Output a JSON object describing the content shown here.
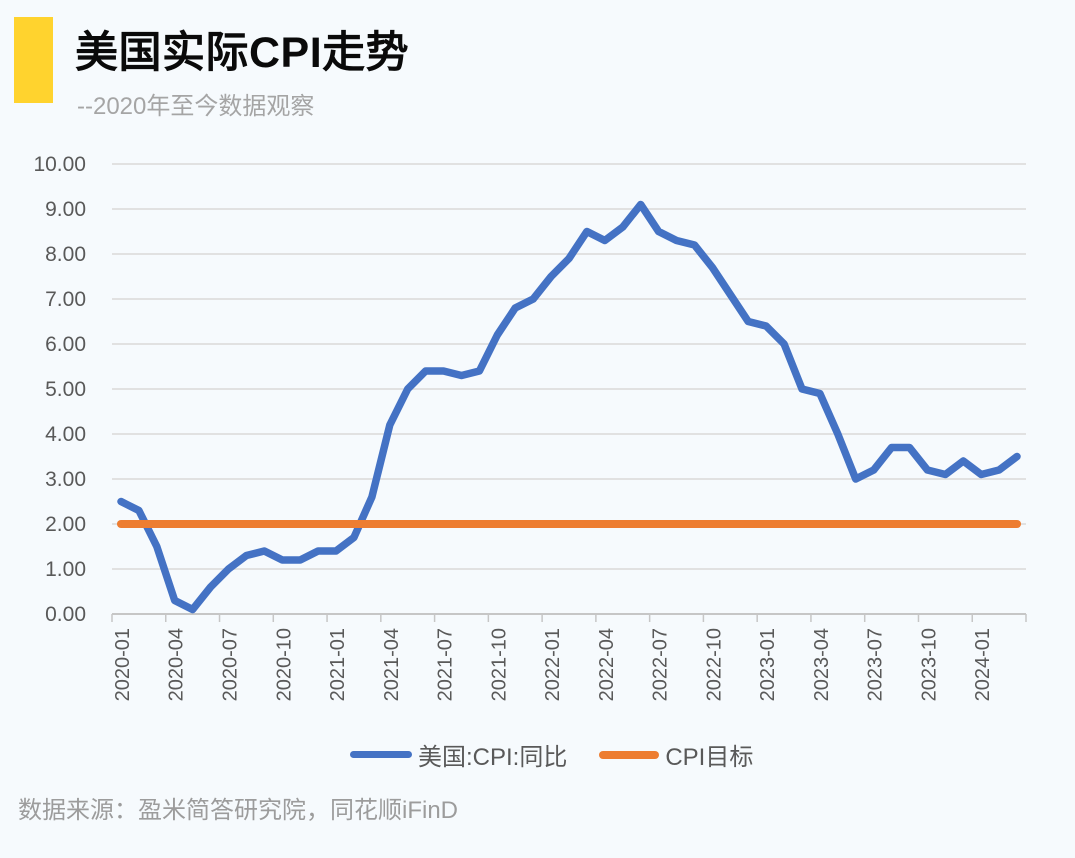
{
  "page": {
    "background": "#F6FAFD"
  },
  "header": {
    "accent_color": "#FFD32E",
    "title": "美国实际CPI走势",
    "subtitle": "--2020年至今数据观察"
  },
  "chart_data": {
    "type": "line",
    "title": "美国实际CPI走势",
    "x": [
      "2020-01",
      "2020-02",
      "2020-03",
      "2020-04",
      "2020-05",
      "2020-06",
      "2020-07",
      "2020-08",
      "2020-09",
      "2020-10",
      "2020-11",
      "2020-12",
      "2021-01",
      "2021-02",
      "2021-03",
      "2021-04",
      "2021-05",
      "2021-06",
      "2021-07",
      "2021-08",
      "2021-09",
      "2021-10",
      "2021-11",
      "2021-12",
      "2022-01",
      "2022-02",
      "2022-03",
      "2022-04",
      "2022-05",
      "2022-06",
      "2022-07",
      "2022-08",
      "2022-09",
      "2022-10",
      "2022-11",
      "2022-12",
      "2023-01",
      "2023-02",
      "2023-03",
      "2023-04",
      "2023-05",
      "2023-06",
      "2023-07",
      "2023-08",
      "2023-09",
      "2023-10",
      "2023-11",
      "2023-12",
      "2024-01",
      "2024-02",
      "2024-03"
    ],
    "series": [
      {
        "name": "美国:CPI:同比",
        "color": "#4472C4",
        "values": [
          2.5,
          2.3,
          1.5,
          0.3,
          0.1,
          0.6,
          1.0,
          1.3,
          1.4,
          1.2,
          1.2,
          1.4,
          1.4,
          1.7,
          2.6,
          4.2,
          5.0,
          5.4,
          5.4,
          5.3,
          5.4,
          6.2,
          6.8,
          7.0,
          7.5,
          7.9,
          8.5,
          8.3,
          8.6,
          9.1,
          8.5,
          8.3,
          8.2,
          7.7,
          7.1,
          6.5,
          6.4,
          6.0,
          5.0,
          4.9,
          4.0,
          3.0,
          3.2,
          3.7,
          3.7,
          3.2,
          3.1,
          3.4,
          3.1,
          3.2,
          3.5
        ]
      },
      {
        "name": "CPI目标",
        "color": "#ED7D31",
        "constant": 2.0
      }
    ],
    "ylim": [
      0,
      10
    ],
    "y_tick_step": 1,
    "y_tick_decimals": 2,
    "x_label_every": 3,
    "x_tick_labels": [
      "2020-01",
      "2020-04",
      "2020-07",
      "2020-10",
      "2021-01",
      "2021-04",
      "2021-07",
      "2021-10",
      "2022-01",
      "2022-04",
      "2022-07",
      "2022-10",
      "2023-01",
      "2023-04",
      "2023-07",
      "2023-10",
      "2024-01"
    ],
    "grid": "horizontal",
    "legend_position": "bottom"
  },
  "footer": {
    "source": "数据来源：盈米简答研究院，同花顺iFinD"
  }
}
